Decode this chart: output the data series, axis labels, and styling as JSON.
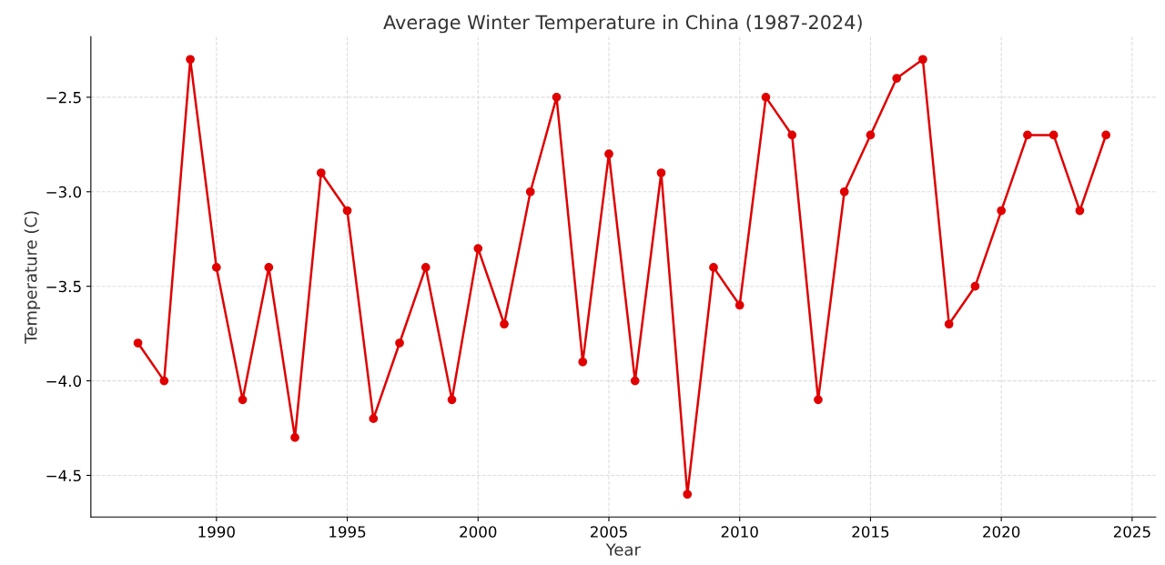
{
  "chart_data": {
    "type": "line",
    "title": "Average Winter Temperature in China (1987-2024)",
    "xlabel": "Year",
    "ylabel": "Temperature (C)",
    "x": [
      1987,
      1988,
      1989,
      1990,
      1991,
      1992,
      1993,
      1994,
      1995,
      1996,
      1997,
      1998,
      1999,
      2000,
      2001,
      2002,
      2003,
      2004,
      2005,
      2006,
      2007,
      2008,
      2009,
      2010,
      2011,
      2012,
      2013,
      2014,
      2015,
      2016,
      2017,
      2018,
      2019,
      2020,
      2021,
      2022,
      2023,
      2024
    ],
    "series": [
      {
        "color": "#e00000",
        "values": [
          -3.8,
          -4.0,
          -2.3,
          -3.4,
          -4.1,
          -3.4,
          -4.3,
          -2.9,
          -3.1,
          -4.2,
          -3.8,
          -3.4,
          -4.1,
          -3.3,
          -3.7,
          -3.0,
          -2.5,
          -3.9,
          -2.8,
          -4.0,
          -2.9,
          -4.6,
          -3.4,
          -3.6,
          -2.5,
          -2.7,
          -4.1,
          -3.0,
          -2.7,
          -2.4,
          -2.3,
          -3.7,
          -3.5,
          -3.1,
          -2.7,
          -2.7,
          -3.1,
          -2.7
        ]
      }
    ],
    "xlim": [
      1985.2,
      2025.9
    ],
    "ylim": [
      -4.72,
      -2.18
    ],
    "xticks": [
      1990,
      1995,
      2000,
      2005,
      2010,
      2015,
      2020,
      2025
    ],
    "yticks": [
      {
        "value": -4.5,
        "label": "−4.5"
      },
      {
        "value": -4.0,
        "label": "−4.0"
      },
      {
        "value": -3.5,
        "label": "−3.5"
      },
      {
        "value": -3.0,
        "label": "−3.0"
      },
      {
        "value": -2.5,
        "label": "−2.5"
      }
    ],
    "grid": true,
    "marker": "circle",
    "line_style": "solid",
    "legend": false
  }
}
